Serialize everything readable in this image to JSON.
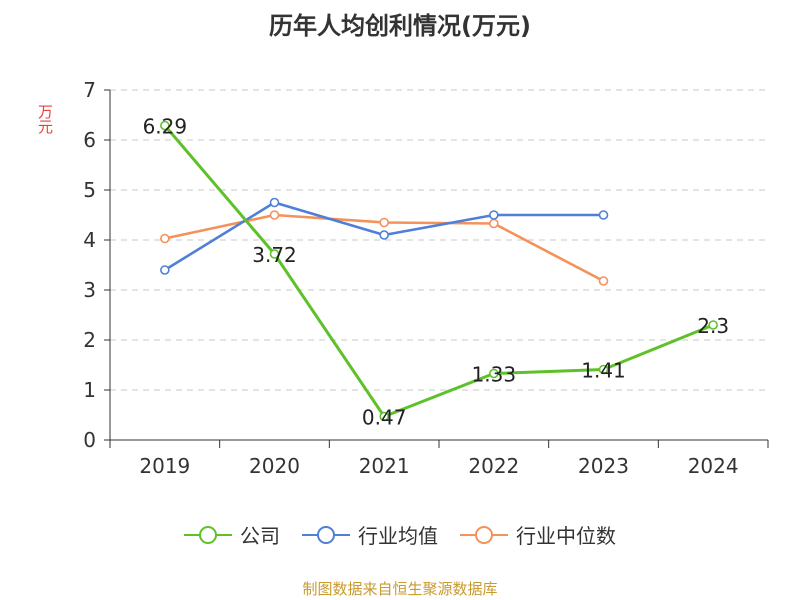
{
  "title": "历年人均创利情况(万元)",
  "unit": "万元",
  "source": "制图数据来自恒生聚源数据库",
  "colors": {
    "company": "#5ec12a",
    "industry_avg": "#4f7fd8",
    "industry_median": "#f5915a"
  },
  "chart_data": {
    "type": "line",
    "title": "历年人均创利情况(万元)",
    "xlabel": "",
    "ylabel": "万元",
    "ylim": [
      0,
      7
    ],
    "yticks": [
      "0",
      "1",
      "2",
      "3",
      "4",
      "5",
      "6",
      "7"
    ],
    "categories": [
      "2019",
      "2020",
      "2021",
      "2022",
      "2023",
      "2024"
    ],
    "grid": true,
    "legend": "bottom-center",
    "series": [
      {
        "name": "公司",
        "values": [
          6.29,
          3.72,
          0.47,
          1.33,
          1.41,
          2.3
        ],
        "labels": [
          "6.29",
          "3.72",
          "0.47",
          "1.33",
          "1.41",
          "2.3"
        ]
      },
      {
        "name": "行业均值",
        "values": [
          3.4,
          4.75,
          4.1,
          4.5,
          4.5,
          null
        ]
      },
      {
        "name": "行业中位数",
        "values": [
          4.03,
          4.5,
          4.35,
          4.33,
          3.18,
          null
        ]
      }
    ]
  }
}
